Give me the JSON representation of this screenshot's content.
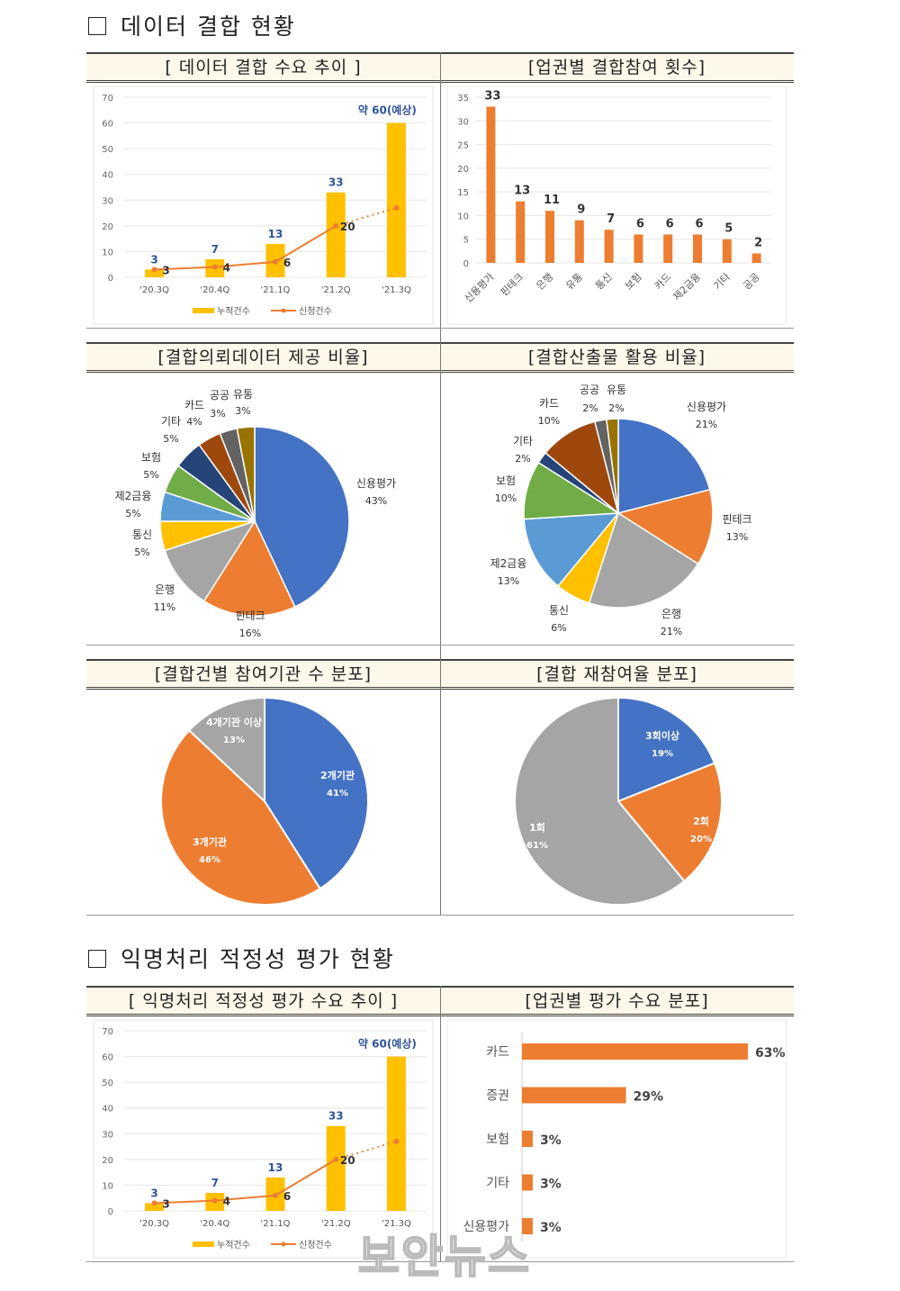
{
  "section1": {
    "title": "데이터 결합 현황"
  },
  "section2": {
    "title": "익명처리 적정성 평가 현황"
  },
  "watermark": "보안뉴스",
  "colors": {
    "orange": "#ed7d31",
    "gold": "#ffc000",
    "blue": "#4472c4",
    "gray": "#a5a5a5",
    "lightblue": "#5b9bd5",
    "green": "#70ad47",
    "navy": "#264478",
    "brown": "#9e480e",
    "darkgray": "#636363",
    "olive": "#997300",
    "numblue": "#2e5597"
  },
  "chart_data": [
    {
      "id": "demand_trend",
      "type": "bar+line",
      "title": "[ 데이터 결합 수요 추이 ]",
      "categories": [
        "'20.3Q",
        "'20.4Q",
        "'21.1Q",
        "'21.2Q",
        "'21.3Q"
      ],
      "series": [
        {
          "name": "누적건수",
          "type": "bar",
          "values": [
            3,
            7,
            13,
            33,
            60
          ],
          "labels": [
            "3",
            "7",
            "13",
            "33",
            "약 60(예상)"
          ]
        },
        {
          "name": "신청건수",
          "type": "line",
          "values": [
            3,
            4,
            6,
            20,
            27
          ],
          "labels": [
            "3",
            "4",
            "6",
            "20",
            ""
          ]
        }
      ],
      "ylim": [
        0,
        70
      ],
      "yticks": [
        0,
        10,
        20,
        30,
        40,
        50,
        60,
        70
      ]
    },
    {
      "id": "industry_count",
      "type": "bar",
      "title": "[업권별 결합참여 횟수]",
      "categories": [
        "신용평가",
        "핀테크",
        "은행",
        "유통",
        "통신",
        "보험",
        "카드",
        "제2금융",
        "기타",
        "공공"
      ],
      "values": [
        33,
        13,
        11,
        9,
        7,
        6,
        6,
        6,
        5,
        2
      ],
      "ylim": [
        0,
        35
      ],
      "yticks": [
        0,
        5,
        10,
        15,
        20,
        25,
        30,
        35
      ]
    },
    {
      "id": "provide_ratio",
      "type": "pie",
      "title": "[결합의뢰데이터 제공 비율]",
      "slices": [
        {
          "label": "신용평가",
          "pct": "43%",
          "value": 43,
          "color": "#4472c4"
        },
        {
          "label": "핀테크",
          "pct": "16%",
          "value": 16,
          "color": "#ed7d31"
        },
        {
          "label": "은행",
          "pct": "11%",
          "value": 11,
          "color": "#a5a5a5"
        },
        {
          "label": "통신",
          "pct": "5%",
          "value": 5,
          "color": "#ffc000"
        },
        {
          "label": "제2금융",
          "pct": "5%",
          "value": 5,
          "color": "#5b9bd5"
        },
        {
          "label": "보험",
          "pct": "5%",
          "value": 5,
          "color": "#70ad47"
        },
        {
          "label": "기타",
          "pct": "5%",
          "value": 5,
          "color": "#264478"
        },
        {
          "label": "카드",
          "pct": "4%",
          "value": 4,
          "color": "#9e480e"
        },
        {
          "label": "공공",
          "pct": "3%",
          "value": 3,
          "color": "#636363"
        },
        {
          "label": "유통",
          "pct": "3%",
          "value": 3,
          "color": "#997300"
        }
      ]
    },
    {
      "id": "output_ratio",
      "type": "pie",
      "title": "[결합산출물 활용 비율]",
      "slices": [
        {
          "label": "신용평가",
          "pct": "21%",
          "value": 21,
          "color": "#4472c4"
        },
        {
          "label": "핀테크",
          "pct": "13%",
          "value": 13,
          "color": "#ed7d31"
        },
        {
          "label": "은행",
          "pct": "21%",
          "value": 21,
          "color": "#a5a5a5"
        },
        {
          "label": "통신",
          "pct": "6%",
          "value": 6,
          "color": "#ffc000"
        },
        {
          "label": "제2금융",
          "pct": "13%",
          "value": 13,
          "color": "#5b9bd5"
        },
        {
          "label": "보험",
          "pct": "10%",
          "value": 10,
          "color": "#70ad47"
        },
        {
          "label": "기타",
          "pct": "2%",
          "value": 2,
          "color": "#264478"
        },
        {
          "label": "카드",
          "pct": "10%",
          "value": 10,
          "color": "#9e480e"
        },
        {
          "label": "공공",
          "pct": "2%",
          "value": 2,
          "color": "#636363"
        },
        {
          "label": "유통",
          "pct": "2%",
          "value": 2,
          "color": "#997300"
        }
      ]
    },
    {
      "id": "org_count",
      "type": "pie",
      "title": "[결합건별 참여기관 수 분포]",
      "slices": [
        {
          "label": "2개기관",
          "pct": "41%",
          "value": 41,
          "color": "#4472c4"
        },
        {
          "label": "3개기관",
          "pct": "46%",
          "value": 46,
          "color": "#ed7d31"
        },
        {
          "label": "4개기관 이상",
          "pct": "13%",
          "value": 13,
          "color": "#a5a5a5"
        }
      ]
    },
    {
      "id": "rejoin_ratio",
      "type": "pie",
      "title": "[결합 재참여율 분포]",
      "slices": [
        {
          "label": "3회이상",
          "pct": "19%",
          "value": 19,
          "color": "#4472c4"
        },
        {
          "label": "2회",
          "pct": "20%",
          "value": 20,
          "color": "#ed7d31"
        },
        {
          "label": "1회",
          "pct": "61%",
          "value": 61,
          "color": "#a5a5a5"
        }
      ]
    },
    {
      "id": "eval_trend",
      "type": "bar+line",
      "title": "[ 익명처리 적정성 평가 수요 추이 ]",
      "categories": [
        "'20.3Q",
        "'20.4Q",
        "'21.1Q",
        "'21.2Q",
        "'21.3Q"
      ],
      "series": [
        {
          "name": "누적건수",
          "type": "bar",
          "values": [
            3,
            7,
            13,
            33,
            60
          ],
          "labels": [
            "3",
            "7",
            "13",
            "33",
            "약 60(예상)"
          ]
        },
        {
          "name": "신청건수",
          "type": "line",
          "values": [
            3,
            4,
            6,
            20,
            27
          ],
          "labels": [
            "3",
            "4",
            "6",
            "20",
            ""
          ]
        }
      ],
      "ylim": [
        0,
        70
      ],
      "yticks": [
        0,
        10,
        20,
        30,
        40,
        50,
        60,
        70
      ]
    },
    {
      "id": "eval_industry",
      "type": "hbar",
      "title": "[업권별 평가 수요 분포]",
      "categories": [
        "카드",
        "증권",
        "보험",
        "기타",
        "신용평가"
      ],
      "values": [
        63,
        29,
        3,
        3,
        3
      ],
      "labels": [
        "63%",
        "29%",
        "3%",
        "3%",
        "3%"
      ]
    }
  ]
}
